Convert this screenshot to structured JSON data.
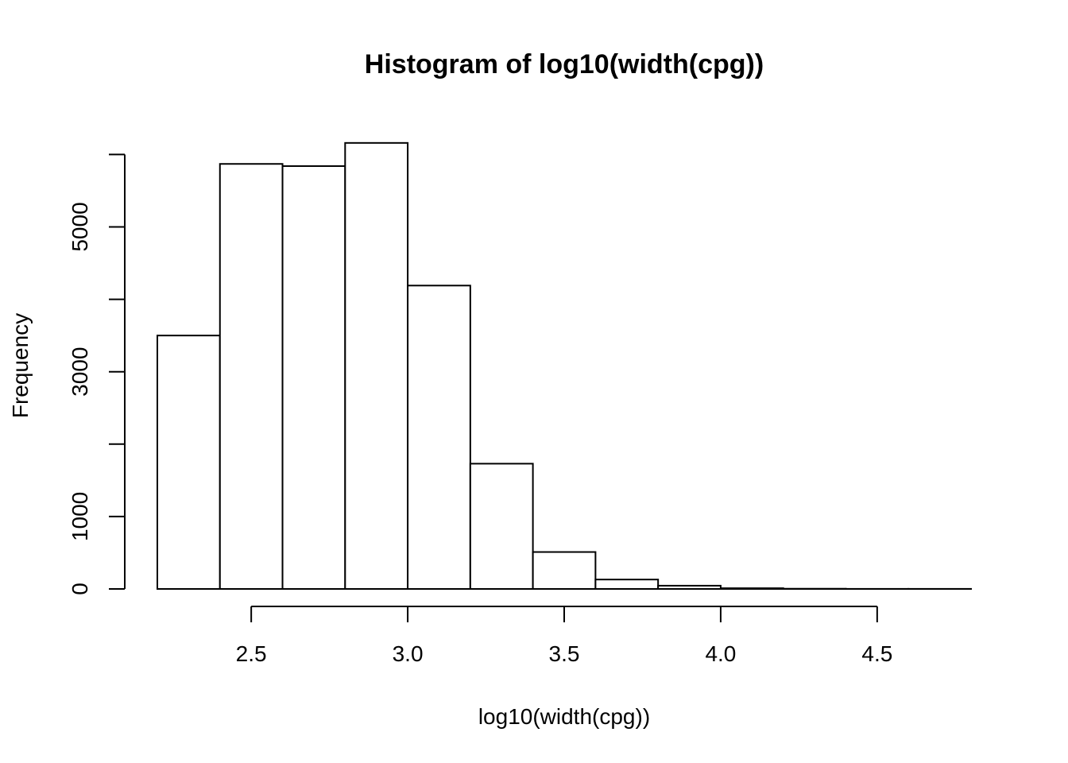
{
  "chart_data": {
    "type": "bar",
    "title": "Histogram of log10(width(cpg))",
    "xlabel": "log10(width(cpg))",
    "ylabel": "Frequency",
    "bin_edges": [
      2.2,
      2.4,
      2.6,
      2.8,
      3.0,
      3.2,
      3.4,
      3.6,
      3.8,
      4.0,
      4.2,
      4.4,
      4.6,
      4.8
    ],
    "values": [
      3500,
      5870,
      5840,
      6160,
      4190,
      1730,
      510,
      130,
      45,
      10,
      3,
      1,
      1
    ],
    "xlim": [
      2.2,
      4.8
    ],
    "ylim": [
      0,
      6160
    ],
    "x_ticks": [
      2.5,
      3.0,
      3.5,
      4.0,
      4.5
    ],
    "x_tick_labels": [
      "2.5",
      "3.0",
      "3.5",
      "4.0",
      "4.5"
    ],
    "y_ticks": [
      0,
      1000,
      2000,
      3000,
      4000,
      5000,
      6000
    ],
    "y_tick_labels": [
      "0",
      "1000",
      "",
      "3000",
      "",
      "5000",
      ""
    ],
    "grid": false,
    "bar_color": "#ffffff",
    "line_color": "#000000"
  }
}
